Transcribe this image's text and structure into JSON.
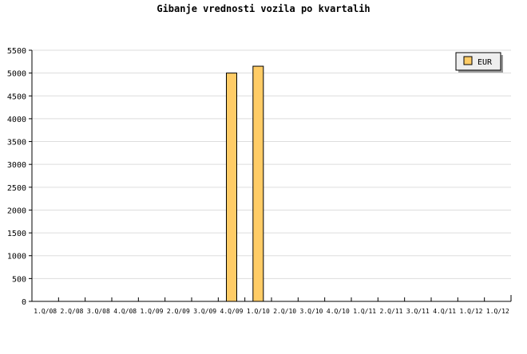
{
  "chart_data": {
    "type": "bar",
    "title": "Gibanje vrednosti vozila po kvartalih",
    "xlabel": "",
    "ylabel": "",
    "categories": [
      "1.Q/08",
      "2.Q/08",
      "3.Q/08",
      "4.Q/08",
      "1.Q/09",
      "2.Q/09",
      "3.Q/09",
      "4.Q/09",
      "1.Q/10",
      "2.Q/10",
      "3.Q/10",
      "4.Q/10",
      "1.Q/11",
      "2.Q/11",
      "3.Q/11",
      "4.Q/11",
      "1.Q/12",
      "1.Q/12"
    ],
    "series": [
      {
        "name": "EUR",
        "color": "#ffcc66",
        "values": [
          null,
          null,
          null,
          null,
          null,
          null,
          null,
          5000,
          5150,
          null,
          null,
          null,
          null,
          null,
          null,
          null,
          null,
          null
        ]
      }
    ],
    "ylim": [
      0,
      5500
    ],
    "yticks": [
      0,
      500,
      1000,
      1500,
      2000,
      2500,
      3000,
      3500,
      4000,
      4500,
      5000,
      5500
    ],
    "grid": true,
    "legend": "top-right"
  }
}
